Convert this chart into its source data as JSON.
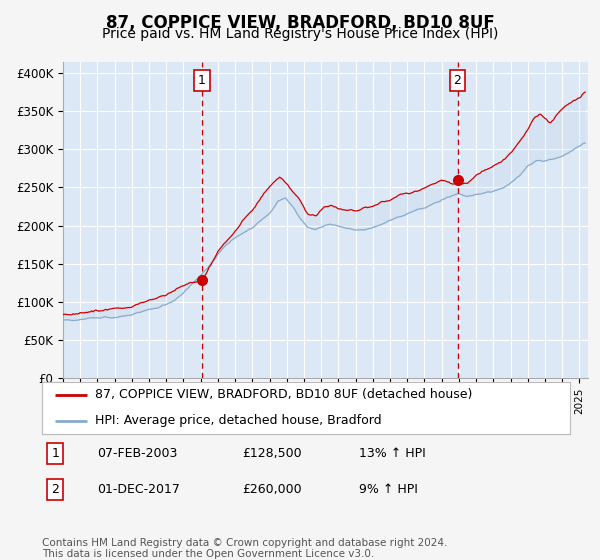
{
  "title": "87, COPPICE VIEW, BRADFORD, BD10 8UF",
  "subtitle": "Price paid vs. HM Land Registry's House Price Index (HPI)",
  "title_fontsize": 12,
  "subtitle_fontsize": 10,
  "ylabel_ticks": [
    "£0",
    "£50K",
    "£100K",
    "£150K",
    "£200K",
    "£250K",
    "£300K",
    "£350K",
    "£400K"
  ],
  "ytick_values": [
    0,
    50000,
    100000,
    150000,
    200000,
    250000,
    300000,
    350000,
    400000
  ],
  "ylim": [
    0,
    415000
  ],
  "xlim_start": 1995.0,
  "xlim_end": 2025.5,
  "xtick_years": [
    1995,
    1996,
    1997,
    1998,
    1999,
    2000,
    2001,
    2002,
    2003,
    2004,
    2005,
    2006,
    2007,
    2008,
    2009,
    2010,
    2011,
    2012,
    2013,
    2014,
    2015,
    2016,
    2017,
    2018,
    2019,
    2020,
    2021,
    2022,
    2023,
    2024,
    2025
  ],
  "background_color": "#f5f5f5",
  "plot_bg_color": "#dce8f5",
  "grid_color": "#ffffff",
  "red_line_color": "#cc0000",
  "blue_line_color": "#88aacc",
  "sale1_date_x": 2003.08,
  "sale1_price": 128500,
  "sale1_label": "1",
  "sale2_date_x": 2017.92,
  "sale2_price": 260000,
  "sale2_label": "2",
  "legend_label_red": "87, COPPICE VIEW, BRADFORD, BD10 8UF (detached house)",
  "legend_label_blue": "HPI: Average price, detached house, Bradford",
  "table_rows": [
    {
      "num": "1",
      "date": "07-FEB-2003",
      "price": "£128,500",
      "hpi": "13% ↑ HPI"
    },
    {
      "num": "2",
      "date": "01-DEC-2017",
      "price": "£260,000",
      "hpi": "9% ↑ HPI"
    }
  ],
  "footnote": "Contains HM Land Registry data © Crown copyright and database right 2024.\nThis data is licensed under the Open Government Licence v3.0.",
  "footnote_fontsize": 7.5,
  "legend_fontsize": 9,
  "table_fontsize": 9,
  "blue_keypoints": [
    [
      1995.0,
      76000
    ],
    [
      1995.5,
      76500
    ],
    [
      1996.0,
      78000
    ],
    [
      1996.5,
      79000
    ],
    [
      1997.0,
      80000
    ],
    [
      1997.5,
      81000
    ],
    [
      1998.0,
      82000
    ],
    [
      1998.5,
      83500
    ],
    [
      1999.0,
      85000
    ],
    [
      1999.5,
      87000
    ],
    [
      2000.0,
      90000
    ],
    [
      2000.5,
      93000
    ],
    [
      2001.0,
      97000
    ],
    [
      2001.5,
      103000
    ],
    [
      2002.0,
      112000
    ],
    [
      2002.5,
      123000
    ],
    [
      2003.0,
      135000
    ],
    [
      2003.5,
      148000
    ],
    [
      2004.0,
      162000
    ],
    [
      2004.5,
      173000
    ],
    [
      2005.0,
      181000
    ],
    [
      2005.5,
      188000
    ],
    [
      2006.0,
      195000
    ],
    [
      2006.5,
      205000
    ],
    [
      2007.0,
      215000
    ],
    [
      2007.5,
      232000
    ],
    [
      2007.9,
      236000
    ],
    [
      2008.3,
      225000
    ],
    [
      2008.8,
      210000
    ],
    [
      2009.2,
      198000
    ],
    [
      2009.7,
      196000
    ],
    [
      2010.0,
      200000
    ],
    [
      2010.5,
      204000
    ],
    [
      2011.0,
      201000
    ],
    [
      2011.5,
      198000
    ],
    [
      2012.0,
      196000
    ],
    [
      2012.5,
      196000
    ],
    [
      2013.0,
      198000
    ],
    [
      2013.5,
      202000
    ],
    [
      2014.0,
      207000
    ],
    [
      2014.5,
      212000
    ],
    [
      2015.0,
      216000
    ],
    [
      2015.5,
      220000
    ],
    [
      2016.0,
      224000
    ],
    [
      2016.5,
      229000
    ],
    [
      2017.0,
      234000
    ],
    [
      2017.5,
      238000
    ],
    [
      2018.0,
      242000
    ],
    [
      2018.5,
      238000
    ],
    [
      2019.0,
      240000
    ],
    [
      2019.5,
      242000
    ],
    [
      2020.0,
      244000
    ],
    [
      2020.5,
      248000
    ],
    [
      2021.0,
      255000
    ],
    [
      2021.5,
      265000
    ],
    [
      2022.0,
      278000
    ],
    [
      2022.5,
      285000
    ],
    [
      2023.0,
      286000
    ],
    [
      2023.5,
      288000
    ],
    [
      2024.0,
      292000
    ],
    [
      2024.5,
      298000
    ],
    [
      2025.0,
      304000
    ],
    [
      2025.3,
      308000
    ]
  ],
  "red_keypoints": [
    [
      1995.0,
      83000
    ],
    [
      1995.5,
      84000
    ],
    [
      1996.0,
      86000
    ],
    [
      1996.5,
      87500
    ],
    [
      1997.0,
      88500
    ],
    [
      1997.5,
      90000
    ],
    [
      1998.0,
      91000
    ],
    [
      1998.5,
      93000
    ],
    [
      1999.0,
      95000
    ],
    [
      1999.5,
      97000
    ],
    [
      2000.0,
      100000
    ],
    [
      2000.5,
      104000
    ],
    [
      2001.0,
      108000
    ],
    [
      2001.5,
      114000
    ],
    [
      2002.0,
      120000
    ],
    [
      2002.5,
      125000
    ],
    [
      2003.08,
      128500
    ],
    [
      2003.5,
      148000
    ],
    [
      2004.0,
      168000
    ],
    [
      2004.5,
      182000
    ],
    [
      2005.0,
      195000
    ],
    [
      2005.5,
      208000
    ],
    [
      2006.0,
      220000
    ],
    [
      2006.5,
      238000
    ],
    [
      2007.0,
      252000
    ],
    [
      2007.3,
      260000
    ],
    [
      2007.6,
      264000
    ],
    [
      2007.9,
      258000
    ],
    [
      2008.3,
      248000
    ],
    [
      2008.8,
      235000
    ],
    [
      2009.2,
      222000
    ],
    [
      2009.7,
      218000
    ],
    [
      2010.0,
      225000
    ],
    [
      2010.5,
      232000
    ],
    [
      2011.0,
      229000
    ],
    [
      2011.5,
      226000
    ],
    [
      2012.0,
      224000
    ],
    [
      2012.5,
      227000
    ],
    [
      2013.0,
      230000
    ],
    [
      2013.5,
      236000
    ],
    [
      2014.0,
      240000
    ],
    [
      2014.5,
      244000
    ],
    [
      2015.0,
      248000
    ],
    [
      2015.5,
      252000
    ],
    [
      2016.0,
      255000
    ],
    [
      2016.5,
      260000
    ],
    [
      2017.0,
      263000
    ],
    [
      2017.92,
      260000
    ],
    [
      2018.0,
      262000
    ],
    [
      2018.5,
      260000
    ],
    [
      2019.0,
      268000
    ],
    [
      2019.5,
      275000
    ],
    [
      2020.0,
      280000
    ],
    [
      2020.5,
      288000
    ],
    [
      2021.0,
      298000
    ],
    [
      2021.5,
      312000
    ],
    [
      2022.0,
      328000
    ],
    [
      2022.3,
      342000
    ],
    [
      2022.7,
      350000
    ],
    [
      2023.0,
      345000
    ],
    [
      2023.3,
      338000
    ],
    [
      2023.7,
      348000
    ],
    [
      2024.0,
      355000
    ],
    [
      2024.5,
      362000
    ],
    [
      2025.0,
      370000
    ],
    [
      2025.3,
      375000
    ]
  ]
}
